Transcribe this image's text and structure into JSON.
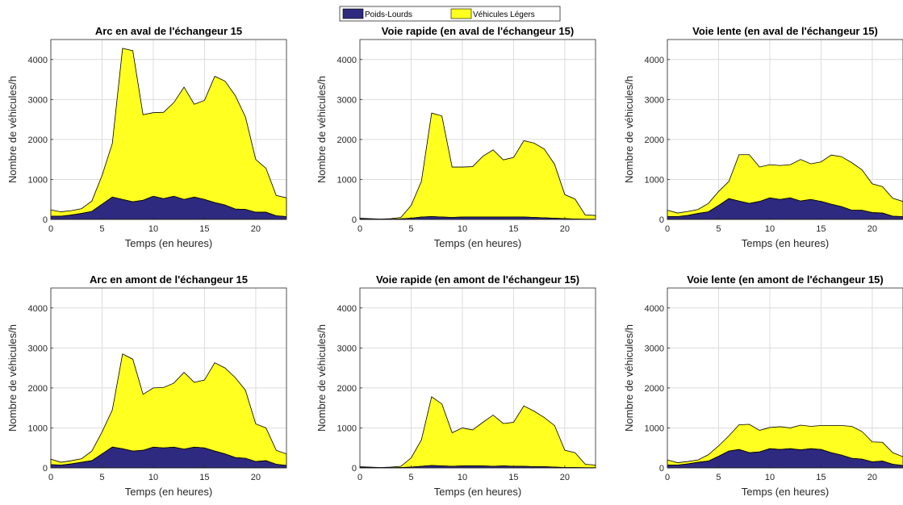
{
  "legend": {
    "placement": "top-center",
    "entries": [
      {
        "name": "Poids-Lourds",
        "color": "#2e2a80"
      },
      {
        "name": "Véhicules Légers",
        "color": "#ffff20"
      }
    ]
  },
  "chart_data": [
    {
      "type": "area",
      "stacked": true,
      "title": "Arc en aval de l'échangeur 15",
      "xlabel": "Temps (en heures)",
      "ylabel": "Nombre de véhicules/h",
      "xlim": [
        0,
        23
      ],
      "ylim": [
        0,
        4500
      ],
      "xticks": [
        0,
        5,
        10,
        15,
        20
      ],
      "yticks": [
        0,
        1000,
        2000,
        3000,
        4000
      ],
      "grid": true,
      "x": [
        0,
        1,
        2,
        3,
        4,
        5,
        6,
        7,
        8,
        9,
        10,
        11,
        12,
        13,
        14,
        15,
        16,
        17,
        18,
        19,
        20,
        21,
        22,
        23
      ],
      "series": [
        {
          "name": "Poids-Lourds",
          "values": [
            80,
            80,
            110,
            150,
            200,
            380,
            560,
            500,
            440,
            480,
            580,
            520,
            580,
            500,
            560,
            500,
            420,
            360,
            260,
            250,
            180,
            180,
            90,
            70
          ]
        },
        {
          "name": "Véhicules Légers",
          "total": [
            240,
            190,
            220,
            270,
            460,
            1100,
            1900,
            4280,
            4220,
            2620,
            2670,
            2680,
            2920,
            3310,
            2880,
            2980,
            3580,
            3460,
            3100,
            2560,
            1500,
            1280,
            600,
            540
          ]
        }
      ]
    },
    {
      "type": "area",
      "stacked": true,
      "title": "Voie rapide (en aval de l'échangeur 15)",
      "xlabel": "Temps (en heures)",
      "ylabel": "Nombre de véhicules/h",
      "xlim": [
        0,
        23
      ],
      "ylim": [
        0,
        4500
      ],
      "xticks": [
        0,
        5,
        10,
        15,
        20
      ],
      "yticks": [
        0,
        1000,
        2000,
        3000,
        4000
      ],
      "grid": true,
      "x": [
        0,
        1,
        2,
        3,
        4,
        5,
        6,
        7,
        8,
        9,
        10,
        11,
        12,
        13,
        14,
        15,
        16,
        17,
        18,
        19,
        20,
        21,
        22,
        23
      ],
      "series": [
        {
          "name": "Poids-Lourds",
          "values": [
            20,
            10,
            5,
            5,
            15,
            30,
            60,
            70,
            60,
            50,
            60,
            60,
            60,
            60,
            60,
            60,
            60,
            50,
            40,
            30,
            20,
            10,
            5,
            5
          ]
        },
        {
          "name": "Véhicules Légers",
          "total": [
            30,
            20,
            10,
            20,
            50,
            350,
            950,
            2660,
            2590,
            1310,
            1310,
            1320,
            1580,
            1740,
            1490,
            1550,
            1970,
            1910,
            1760,
            1380,
            620,
            510,
            110,
            100
          ]
        }
      ]
    },
    {
      "type": "area",
      "stacked": true,
      "title": "Voie lente (en aval de l'échangeur 15)",
      "xlabel": "Temps (en heures)",
      "ylabel": "Nombre de véhicules/h",
      "xlim": [
        0,
        23
      ],
      "ylim": [
        0,
        4500
      ],
      "xticks": [
        0,
        5,
        10,
        15,
        20
      ],
      "yticks": [
        0,
        1000,
        2000,
        3000,
        4000
      ],
      "grid": true,
      "x": [
        0,
        1,
        2,
        3,
        4,
        5,
        6,
        7,
        8,
        9,
        10,
        11,
        12,
        13,
        14,
        15,
        16,
        17,
        18,
        19,
        20,
        21,
        22,
        23
      ],
      "series": [
        {
          "name": "Poids-Lourds",
          "values": [
            70,
            70,
            100,
            150,
            190,
            350,
            520,
            460,
            400,
            450,
            540,
            500,
            540,
            460,
            500,
            450,
            380,
            320,
            230,
            230,
            170,
            160,
            80,
            70
          ]
        },
        {
          "name": "Véhicules Légers",
          "total": [
            230,
            160,
            200,
            250,
            400,
            700,
            950,
            1620,
            1620,
            1310,
            1370,
            1350,
            1370,
            1500,
            1390,
            1440,
            1610,
            1570,
            1420,
            1240,
            890,
            820,
            530,
            450
          ]
        }
      ]
    },
    {
      "type": "area",
      "stacked": true,
      "title": "Arc en amont de l'échangeur 15",
      "xlabel": "Temps (en heures)",
      "ylabel": "Nombre de véhicules/h",
      "xlim": [
        0,
        23
      ],
      "ylim": [
        0,
        4500
      ],
      "xticks": [
        0,
        5,
        10,
        15,
        20
      ],
      "yticks": [
        0,
        1000,
        2000,
        3000,
        4000
      ],
      "grid": true,
      "x": [
        0,
        1,
        2,
        3,
        4,
        5,
        6,
        7,
        8,
        9,
        10,
        11,
        12,
        13,
        14,
        15,
        16,
        17,
        18,
        19,
        20,
        21,
        22,
        23
      ],
      "series": [
        {
          "name": "Poids-Lourds",
          "values": [
            80,
            70,
            100,
            140,
            180,
            350,
            520,
            480,
            420,
            440,
            520,
            500,
            520,
            470,
            520,
            500,
            420,
            350,
            260,
            240,
            160,
            180,
            90,
            60
          ]
        },
        {
          "name": "Véhicules Légers",
          "total": [
            220,
            140,
            180,
            230,
            420,
            900,
            1450,
            2850,
            2720,
            1840,
            2000,
            2010,
            2120,
            2390,
            2140,
            2200,
            2630,
            2500,
            2260,
            1940,
            1100,
            1000,
            440,
            350
          ]
        }
      ]
    },
    {
      "type": "area",
      "stacked": true,
      "title": "Voie rapide (en amont de l'échangeur 15)",
      "xlabel": "Temps (en heures)",
      "ylabel": "Nombre de véhicules/h",
      "xlim": [
        0,
        23
      ],
      "ylim": [
        0,
        4500
      ],
      "xticks": [
        0,
        5,
        10,
        15,
        20
      ],
      "yticks": [
        0,
        1000,
        2000,
        3000,
        4000
      ],
      "grid": true,
      "x": [
        0,
        1,
        2,
        3,
        4,
        5,
        6,
        7,
        8,
        9,
        10,
        11,
        12,
        13,
        14,
        15,
        16,
        17,
        18,
        19,
        20,
        21,
        22,
        23
      ],
      "series": [
        {
          "name": "Poids-Lourds",
          "values": [
            20,
            10,
            5,
            5,
            10,
            20,
            40,
            60,
            50,
            40,
            50,
            50,
            50,
            40,
            50,
            40,
            40,
            30,
            30,
            20,
            10,
            10,
            5,
            5
          ]
        },
        {
          "name": "Véhicules Légers",
          "total": [
            30,
            20,
            10,
            20,
            40,
            250,
            700,
            1780,
            1600,
            880,
            1000,
            950,
            1140,
            1320,
            1110,
            1140,
            1550,
            1420,
            1260,
            1060,
            440,
            380,
            90,
            70
          ]
        }
      ]
    },
    {
      "type": "area",
      "stacked": true,
      "title": "Voie lente (en amont de l'échangeur 15)",
      "xlabel": "Temps (en heures)",
      "ylabel": "Nombre de véhicules/h",
      "xlim": [
        0,
        23
      ],
      "ylim": [
        0,
        4500
      ],
      "xticks": [
        0,
        5,
        10,
        15,
        20
      ],
      "yticks": [
        0,
        1000,
        2000,
        3000,
        4000
      ],
      "grid": true,
      "x": [
        0,
        1,
        2,
        3,
        4,
        5,
        6,
        7,
        8,
        9,
        10,
        11,
        12,
        13,
        14,
        15,
        16,
        17,
        18,
        19,
        20,
        21,
        22,
        23
      ],
      "series": [
        {
          "name": "Poids-Lourds",
          "values": [
            70,
            70,
            100,
            140,
            170,
            290,
            420,
            460,
            380,
            400,
            480,
            460,
            480,
            450,
            480,
            460,
            380,
            320,
            240,
            220,
            150,
            170,
            90,
            60
          ]
        },
        {
          "name": "Véhicules Légers",
          "total": [
            200,
            130,
            160,
            200,
            330,
            550,
            800,
            1080,
            1090,
            940,
            1010,
            1030,
            1000,
            1070,
            1040,
            1060,
            1060,
            1060,
            1040,
            910,
            650,
            640,
            380,
            280
          ]
        }
      ]
    }
  ]
}
